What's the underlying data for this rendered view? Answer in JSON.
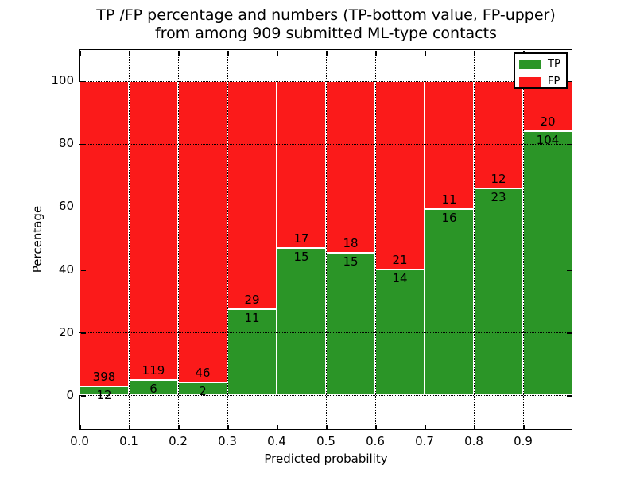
{
  "title": {
    "line1": "TP /FP percentage and numbers (TP-bottom value, FP-upper)",
    "line2": "from among 909 submitted ML-type contacts"
  },
  "chart_data": {
    "type": "bar",
    "stacked": true,
    "normalized": "each bin scaled to 100%",
    "total_contacts": 909,
    "bin_edges": [
      0.0,
      0.1,
      0.2,
      0.3,
      0.4,
      0.5,
      0.6,
      0.7,
      0.8,
      0.9,
      1.0
    ],
    "series": [
      {
        "name": "TP",
        "color": "#2b9527",
        "counts": [
          12,
          6,
          2,
          11,
          15,
          15,
          14,
          16,
          23,
          104
        ]
      },
      {
        "name": "FP",
        "color": "#fb1a1a",
        "counts": [
          398,
          119,
          46,
          29,
          17,
          18,
          21,
          11,
          12,
          20
        ]
      }
    ],
    "tp_percent_by_bin": [
      2.93,
      4.8,
      4.17,
      27.5,
      46.88,
      45.45,
      40.0,
      59.26,
      65.71,
      83.87
    ],
    "xlabel": "Predicted probability",
    "ylabel": "Percentage",
    "xticks": [
      "0.0",
      "0.1",
      "0.2",
      "0.3",
      "0.4",
      "0.5",
      "0.6",
      "0.7",
      "0.8",
      "0.9"
    ],
    "yticks": [
      "0",
      "20",
      "40",
      "60",
      "80",
      "100"
    ],
    "xlim": [
      0.0,
      1.0
    ],
    "ylim": [
      -11,
      110
    ],
    "grid": {
      "style": "dotted",
      "color": "#000000",
      "on": true
    },
    "legend": {
      "position": "upper right",
      "entries": [
        "TP",
        "FP"
      ]
    },
    "colors": {
      "tp": "#2b9527",
      "fp": "#fb1a1a",
      "bar_edge": "#ffffff",
      "axes": "#000000",
      "background": "#ffffff"
    }
  }
}
